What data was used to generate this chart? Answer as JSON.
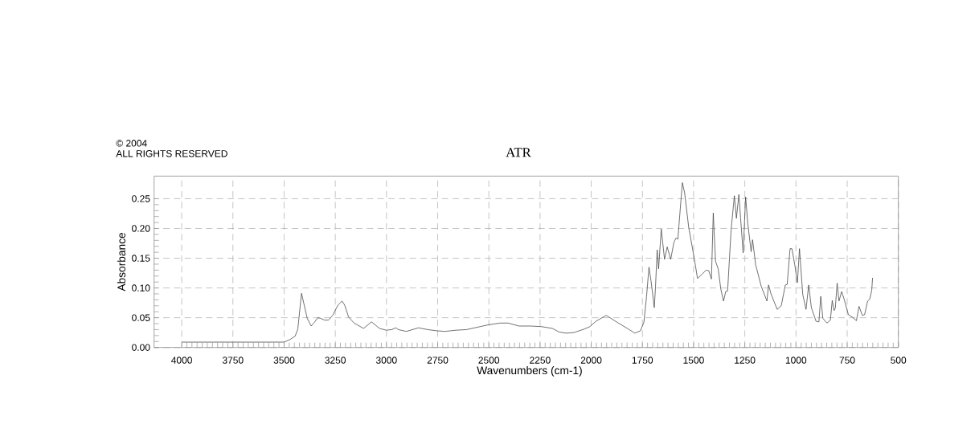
{
  "chart_data": {
    "type": "line",
    "title": "ATR",
    "xlabel": "Wavenumbers (cm-1)",
    "ylabel": "Absorbance",
    "annotations": [
      "© 2004",
      "ALL RIGHTS RESERVED"
    ],
    "x": [
      4000,
      3750,
      3500,
      3473,
      3446,
      3433,
      3415,
      3405,
      3387,
      3368,
      3355,
      3335,
      3322,
      3303,
      3283,
      3263,
      3237,
      3217,
      3204,
      3185,
      3158,
      3112,
      3073,
      3034,
      3001,
      2975,
      2955,
      2942,
      2903,
      2844,
      2798,
      2753,
      2714,
      2661,
      2609,
      2543,
      2504,
      2445,
      2406,
      2353,
      2295,
      2242,
      2190,
      2157,
      2124,
      2085,
      2033,
      2007,
      1977,
      1927,
      1872,
      1819,
      1787,
      1760,
      1743,
      1730,
      1718,
      1708,
      1692,
      1686,
      1678,
      1671,
      1658,
      1642,
      1629,
      1612,
      1596,
      1586,
      1577,
      1555,
      1544,
      1524,
      1498,
      1481,
      1459,
      1439,
      1426,
      1413,
      1404,
      1393,
      1380,
      1367,
      1354,
      1343,
      1334,
      1317,
      1301,
      1291,
      1279,
      1269,
      1258,
      1246,
      1236,
      1219,
      1212,
      1197,
      1170,
      1142,
      1134,
      1122,
      1092,
      1072,
      1052,
      1043,
      1029,
      1020,
      1006,
      993,
      983,
      967,
      951,
      938,
      925,
      902,
      888,
      879,
      869,
      849,
      832,
      823,
      814,
      808,
      799,
      790,
      777,
      764,
      744,
      725,
      705,
      692,
      676,
      665,
      650,
      640,
      630,
      626
    ],
    "values": [
      0.009,
      0.009,
      0.009,
      0.013,
      0.019,
      0.031,
      0.091,
      0.076,
      0.049,
      0.036,
      0.041,
      0.05,
      0.049,
      0.046,
      0.046,
      0.054,
      0.071,
      0.078,
      0.071,
      0.051,
      0.041,
      0.032,
      0.043,
      0.032,
      0.029,
      0.03,
      0.033,
      0.03,
      0.027,
      0.033,
      0.03,
      0.028,
      0.027,
      0.029,
      0.03,
      0.035,
      0.038,
      0.041,
      0.041,
      0.036,
      0.036,
      0.035,
      0.032,
      0.026,
      0.024,
      0.025,
      0.031,
      0.035,
      0.044,
      0.054,
      0.042,
      0.031,
      0.024,
      0.028,
      0.042,
      0.085,
      0.135,
      0.112,
      0.067,
      0.103,
      0.164,
      0.132,
      0.199,
      0.148,
      0.169,
      0.148,
      0.177,
      0.184,
      0.182,
      0.277,
      0.26,
      0.202,
      0.152,
      0.116,
      0.123,
      0.13,
      0.129,
      0.115,
      0.226,
      0.145,
      0.132,
      0.098,
      0.078,
      0.094,
      0.095,
      0.197,
      0.255,
      0.217,
      0.257,
      0.21,
      0.159,
      0.253,
      0.21,
      0.161,
      0.181,
      0.139,
      0.103,
      0.078,
      0.105,
      0.09,
      0.064,
      0.07,
      0.105,
      0.106,
      0.166,
      0.166,
      0.139,
      0.109,
      0.166,
      0.089,
      0.064,
      0.105,
      0.067,
      0.044,
      0.043,
      0.086,
      0.049,
      0.041,
      0.046,
      0.079,
      0.062,
      0.066,
      0.108,
      0.078,
      0.094,
      0.08,
      0.055,
      0.051,
      0.045,
      0.069,
      0.054,
      0.055,
      0.078,
      0.081,
      0.096,
      0.117
    ],
    "color": "#3c3c3c",
    "line_style": "solid",
    "xlim": [
      4135,
      500
    ],
    "ylim": [
      0,
      0.288
    ],
    "xticks": [
      4000,
      3750,
      3500,
      3250,
      3000,
      2750,
      2500,
      2250,
      2000,
      1750,
      1500,
      1250,
      1000,
      750,
      500
    ],
    "yticks": [
      {
        "value": 0,
        "label": "0.00"
      },
      {
        "value": 0.05,
        "label": "0.05"
      },
      {
        "value": 0.1,
        "label": "0.10"
      },
      {
        "value": 0.15,
        "label": "0.15"
      },
      {
        "value": 0.2,
        "label": "0.20"
      },
      {
        "value": 0.25,
        "label": "0.25"
      }
    ],
    "grid": true
  }
}
